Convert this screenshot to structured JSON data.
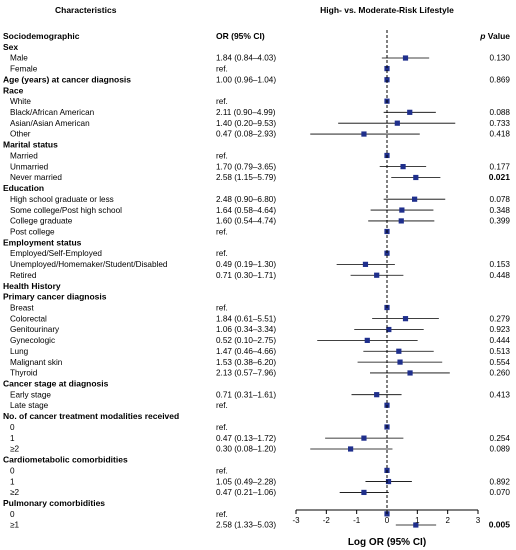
{
  "chart_data": {
    "type": "forest",
    "title": "High- vs. Moderate-Risk Lifestyle",
    "columns": {
      "characteristics": "Characteristics",
      "or": "OR (95% CI)",
      "p": "p Value"
    },
    "xlabel": "Log OR (95% CI)",
    "xlim": [
      -3,
      3
    ],
    "xticks": [
      -3,
      -2,
      -1,
      0,
      1,
      2,
      3
    ],
    "rows": [
      {
        "label": "Sociodemographic",
        "kind": "section",
        "or": "OR (95% CI)"
      },
      {
        "label": "Sex",
        "kind": "group"
      },
      {
        "label": "Male",
        "kind": "item",
        "or": "1.84 (0.84–4.03)",
        "p": "0.130",
        "est": 0.61,
        "lo": -0.17,
        "hi": 1.39
      },
      {
        "label": "Female",
        "kind": "item",
        "or": "ref.",
        "ref": true
      },
      {
        "label": "Age (years) at cancer diagnosis",
        "kind": "group",
        "or": "1.00 (0.96–1.04)",
        "p": "0.869",
        "est": 0.0,
        "lo": -0.04,
        "hi": 0.04
      },
      {
        "label": "Race",
        "kind": "group"
      },
      {
        "label": "White",
        "kind": "item",
        "or": "ref.",
        "ref": true
      },
      {
        "label": "Black/African American",
        "kind": "item",
        "or": "2.11 (0.90–4.99)",
        "p": "0.088",
        "est": 0.75,
        "lo": -0.11,
        "hi": 1.61
      },
      {
        "label": "Asian/Asian American",
        "kind": "item",
        "or": "1.40 (0.20–9.53)",
        "p": "0.733",
        "est": 0.34,
        "lo": -1.61,
        "hi": 2.25
      },
      {
        "label": "Other",
        "kind": "item",
        "or": "0.47 (0.08–2.93)",
        "p": "0.418",
        "est": -0.76,
        "lo": -2.53,
        "hi": 1.08
      },
      {
        "label": "Marital status",
        "kind": "group"
      },
      {
        "label": "Married",
        "kind": "item",
        "or": "ref.",
        "ref": true
      },
      {
        "label": "Unmarried",
        "kind": "item",
        "or": "1.70 (0.79–3.65)",
        "p": "0.177",
        "est": 0.53,
        "lo": -0.24,
        "hi": 1.29
      },
      {
        "label": "Never married",
        "kind": "item",
        "or": "2.58 (1.15–5.79)",
        "p": "0.021",
        "pbold": true,
        "est": 0.95,
        "lo": 0.14,
        "hi": 1.76
      },
      {
        "label": "Education",
        "kind": "group"
      },
      {
        "label": "High school graduate or less",
        "kind": "item",
        "or": "2.48 (0.90–6.80)",
        "p": "0.078",
        "est": 0.91,
        "lo": -0.11,
        "hi": 1.92
      },
      {
        "label": "Some college/Post high school",
        "kind": "item",
        "or": "1.64 (0.58–4.64)",
        "p": "0.348",
        "est": 0.49,
        "lo": -0.54,
        "hi": 1.53
      },
      {
        "label": "College graduate",
        "kind": "item",
        "or": "1.60 (0.54–4.74)",
        "p": "0.399",
        "est": 0.47,
        "lo": -0.62,
        "hi": 1.56
      },
      {
        "label": "Post college",
        "kind": "item",
        "or": "ref.",
        "ref": true
      },
      {
        "label": "Employment status",
        "kind": "group"
      },
      {
        "label": "Employed/Self-Employed",
        "kind": "item",
        "or": "ref.",
        "ref": true
      },
      {
        "label": "Unemployed/Homemaker/Student/Disabled",
        "kind": "item",
        "or": "0.49 (0.19–1.30)",
        "p": "0.153",
        "est": -0.71,
        "lo": -1.66,
        "hi": 0.26
      },
      {
        "label": "Retired",
        "kind": "item",
        "or": "0.71 (0.30–1.71)",
        "p": "0.448",
        "est": -0.34,
        "lo": -1.2,
        "hi": 0.54
      },
      {
        "label": "Health History",
        "kind": "section"
      },
      {
        "label": "Primary cancer diagnosis",
        "kind": "group"
      },
      {
        "label": "Breast",
        "kind": "item",
        "or": "ref.",
        "ref": true
      },
      {
        "label": "Colorectal",
        "kind": "item",
        "or": "1.84 (0.61–5.51)",
        "p": "0.279",
        "est": 0.61,
        "lo": -0.49,
        "hi": 1.71
      },
      {
        "label": "Genitourinary",
        "kind": "item",
        "or": "1.06 (0.34–3.34)",
        "p": "0.923",
        "est": 0.06,
        "lo": -1.08,
        "hi": 1.21
      },
      {
        "label": "Gynecologic",
        "kind": "item",
        "or": "0.52 (0.10–2.75)",
        "p": "0.444",
        "est": -0.65,
        "lo": -2.3,
        "hi": 1.01
      },
      {
        "label": "Lung",
        "kind": "item",
        "or": "1.47 (0.46–4.66)",
        "p": "0.513",
        "est": 0.39,
        "lo": -0.78,
        "hi": 1.54
      },
      {
        "label": "Malignant skin",
        "kind": "item",
        "or": "1.53 (0.38–6.20)",
        "p": "0.554",
        "est": 0.43,
        "lo": -0.97,
        "hi": 1.82
      },
      {
        "label": "Thyroid",
        "kind": "item",
        "or": "2.13 (0.57–7.96)",
        "p": "0.260",
        "est": 0.76,
        "lo": -0.56,
        "hi": 2.07
      },
      {
        "label": "Cancer stage at diagnosis",
        "kind": "group"
      },
      {
        "label": "Early stage",
        "kind": "item",
        "or": "0.71 (0.31–1.61)",
        "p": "0.413",
        "est": -0.34,
        "lo": -1.17,
        "hi": 0.48
      },
      {
        "label": "Late stage",
        "kind": "item",
        "or": "ref.",
        "ref": true
      },
      {
        "label": "No. of cancer treatment modalities received",
        "kind": "group"
      },
      {
        "label": "0",
        "kind": "item",
        "or": "ref.",
        "ref": true
      },
      {
        "label": "1",
        "kind": "item",
        "or": "0.47 (0.13–1.72)",
        "p": "0.254",
        "est": -0.76,
        "lo": -2.04,
        "hi": 0.54
      },
      {
        "label": "≥2",
        "kind": "item",
        "or": "0.30 (0.08–1.20)",
        "p": "0.089",
        "est": -1.2,
        "lo": -2.53,
        "hi": 0.18
      },
      {
        "label": "Cardiometabolic comorbidities",
        "kind": "group"
      },
      {
        "label": "0",
        "kind": "item",
        "or": "ref.",
        "ref": true
      },
      {
        "label": "1",
        "kind": "item",
        "or": "1.05 (0.49–2.28)",
        "p": "0.892",
        "est": 0.05,
        "lo": -0.71,
        "hi": 0.82
      },
      {
        "label": "≥2",
        "kind": "item",
        "or": "0.47 (0.21–1.06)",
        "p": "0.070",
        "est": -0.76,
        "lo": -1.56,
        "hi": 0.06
      },
      {
        "label": "Pulmonary comorbidities",
        "kind": "group"
      },
      {
        "label": "0",
        "kind": "item",
        "or": "ref.",
        "ref": true
      },
      {
        "label": "≥1",
        "kind": "item",
        "or": "2.58 (1.33–5.03)",
        "p": "0.005",
        "pbold": true,
        "est": 0.95,
        "lo": 0.29,
        "hi": 1.62
      }
    ],
    "colors": {
      "marker": "#1f2f8c",
      "line": "#000000",
      "refline": "#000000"
    }
  }
}
